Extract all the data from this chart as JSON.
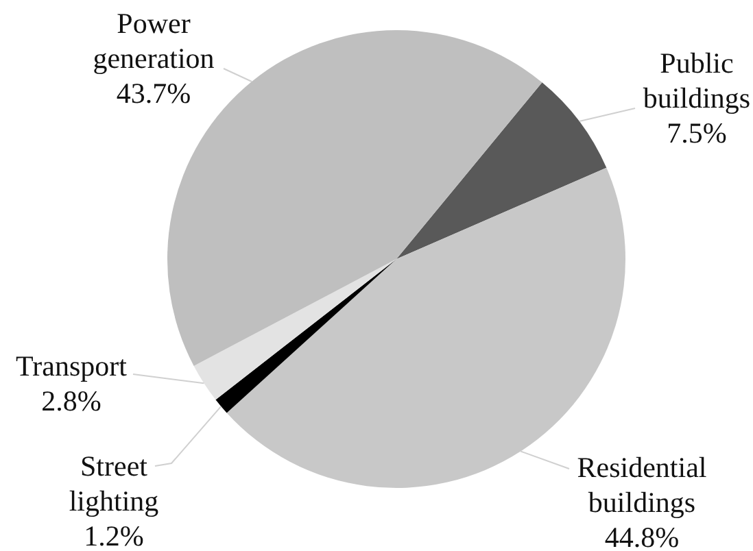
{
  "chart_data": {
    "type": "pie",
    "categories": [
      "Public buildings",
      "Residential buildings",
      "Street lighting",
      "Transport",
      "Power generation"
    ],
    "values": [
      7.5,
      44.8,
      1.2,
      2.8,
      43.7
    ],
    "value_labels": [
      "7.5%",
      "44.8%",
      "1.2%",
      "2.8%",
      "43.7%"
    ],
    "colors": [
      "#595959",
      "#c8c8c8",
      "#000000",
      "#e3e3e3",
      "#bfbfbf"
    ]
  }
}
